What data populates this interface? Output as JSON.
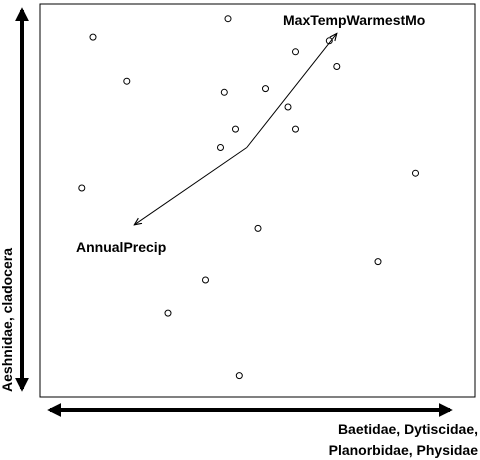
{
  "chart_data": {
    "type": "scatter",
    "points": [
      {
        "x": 0.08,
        "y": 0.94
      },
      {
        "x": 0.44,
        "y": 0.99
      },
      {
        "x": 0.17,
        "y": 0.82
      },
      {
        "x": 0.43,
        "y": 0.79
      },
      {
        "x": 0.54,
        "y": 0.8
      },
      {
        "x": 0.62,
        "y": 0.9
      },
      {
        "x": 0.71,
        "y": 0.93
      },
      {
        "x": 0.73,
        "y": 0.86
      },
      {
        "x": 0.6,
        "y": 0.75
      },
      {
        "x": 0.46,
        "y": 0.69
      },
      {
        "x": 0.42,
        "y": 0.64
      },
      {
        "x": 0.62,
        "y": 0.69
      },
      {
        "x": 0.05,
        "y": 0.53
      },
      {
        "x": 0.94,
        "y": 0.57
      },
      {
        "x": 0.52,
        "y": 0.42
      },
      {
        "x": 0.84,
        "y": 0.33
      },
      {
        "x": 0.38,
        "y": 0.28
      },
      {
        "x": 0.28,
        "y": 0.19
      },
      {
        "x": 0.47,
        "y": 0.02
      }
    ],
    "vectors": [
      {
        "label": "MaxTempWarmestMo",
        "path": [
          [
            0.49,
            0.64
          ],
          [
            0.73,
            0.95
          ]
        ]
      },
      {
        "label": "AnnualPrecip",
        "path": [
          [
            0.49,
            0.64
          ],
          [
            0.19,
            0.43
          ]
        ]
      }
    ],
    "xlabel": "Baetidae, Dytiscidae, Planorbidae, Physidae",
    "xlabel_lines": [
      "Baetidae, Dytiscidae,",
      "Planorbidae, Physidae"
    ],
    "ylabel": "Aeshnidae, cladocera",
    "grid": false,
    "colors": {
      "points": "#000000",
      "axes": "#000000",
      "frame": "#000000",
      "vectors": "#000000"
    }
  }
}
